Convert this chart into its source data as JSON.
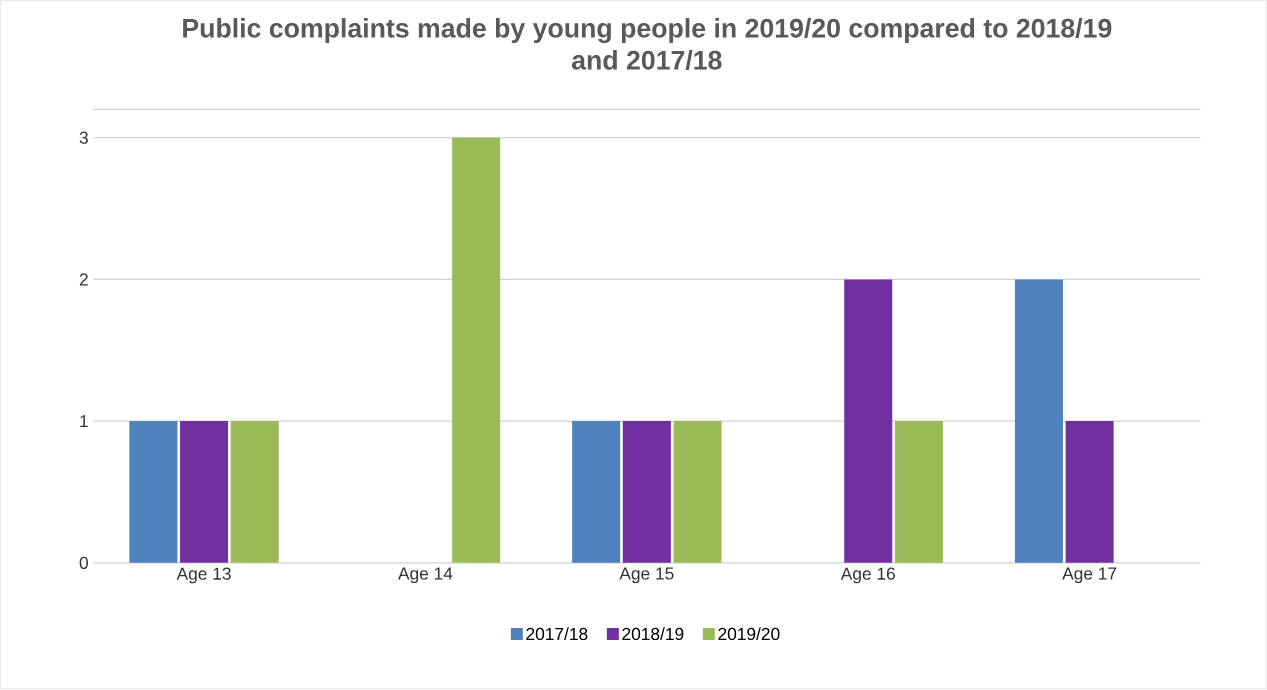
{
  "chart_data": {
    "type": "bar",
    "title": "Public complaints made by young people in 2019/20 compared to 2018/19 and 2017/18",
    "categories": [
      "Age 13",
      "Age 14",
      "Age 15",
      "Age 16",
      "Age 17"
    ],
    "series": [
      {
        "name": "2017/18",
        "color": "#4f81bd",
        "values": [
          1,
          0,
          1,
          0,
          2
        ]
      },
      {
        "name": "2018/19",
        "color": "#7030a0",
        "values": [
          1,
          0,
          1,
          2,
          1
        ]
      },
      {
        "name": "2019/20",
        "color": "#9bbb59",
        "values": [
          1,
          3,
          1,
          1,
          0
        ]
      }
    ],
    "ylim": [
      0,
      3.2
    ],
    "yticks": [
      0,
      1,
      2,
      3
    ],
    "grid": "y",
    "legend": "bottom"
  }
}
